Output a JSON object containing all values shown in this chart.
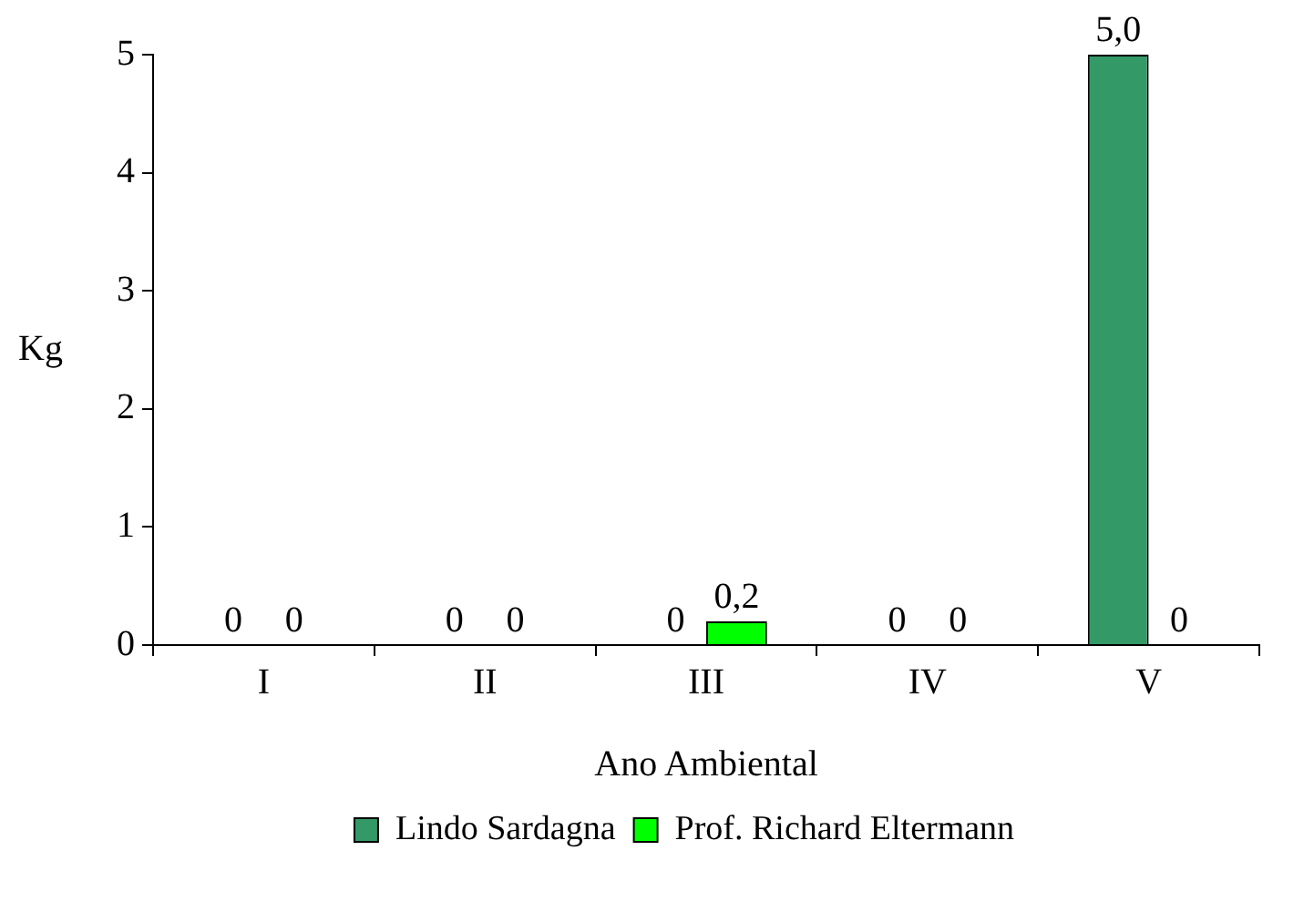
{
  "chart_data": {
    "type": "bar",
    "xlabel": "Ano Ambiental",
    "ylabel": "Kg",
    "categories": [
      "I",
      "II",
      "III",
      "IV",
      "V"
    ],
    "series": [
      {
        "name": "Lindo Sardagna",
        "color": "#339966",
        "values": [
          0,
          0,
          0,
          0,
          5.0
        ],
        "value_labels": [
          "0",
          "0",
          "0",
          "0",
          "5,0"
        ]
      },
      {
        "name": "Prof. Richard Eltermann",
        "color": "#00ff00",
        "values": [
          0,
          0,
          0.2,
          0,
          0
        ],
        "value_labels": [
          "0",
          "0",
          "0,2",
          "0",
          "0"
        ]
      }
    ],
    "ylim": [
      0,
      5
    ],
    "yticks": [
      0,
      1,
      2,
      3,
      4,
      5
    ],
    "grid": false,
    "legend": "bottom"
  }
}
